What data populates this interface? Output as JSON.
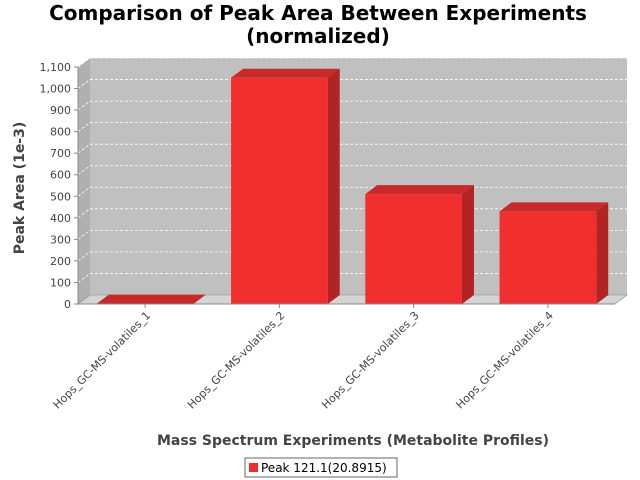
{
  "chart_data": {
    "type": "bar",
    "title": "Comparison of Peak Area Between Experiments",
    "subtitle": "(normalized)",
    "xlabel": "Mass Spectrum Experiments (Metabolite Profiles)",
    "ylabel": "Peak Area (1e-3)",
    "categories": [
      "Hops_GC-MS-volatiles_1",
      "Hops_GC-MS-volatiles_2",
      "Hops_GC-MS-volatiles_3",
      "Hops_GC-MS-volatiles_4"
    ],
    "series": [
      {
        "name": "Peak 121.1(20.8915)",
        "values": [
          2,
          1050,
          510,
          430
        ],
        "color": "#f22f2f"
      }
    ],
    "ylim": [
      0,
      1100
    ],
    "yticks": [
      "0",
      "100",
      "200",
      "300",
      "400",
      "500",
      "600",
      "700",
      "800",
      "900",
      "1,000",
      "1,100"
    ],
    "grid": true,
    "legend_position": "bottom",
    "plot_background": "#c0c0c0",
    "floor_color": "#d4d4d4"
  }
}
